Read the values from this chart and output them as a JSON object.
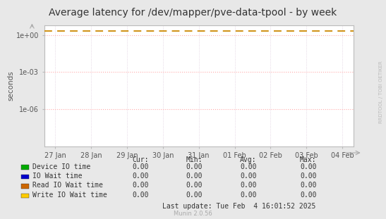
{
  "title": "Average latency for /dev/mapper/pve-data-tpool - by week",
  "ylabel": "seconds",
  "bg_color": "#e8e8e8",
  "plot_bg_color": "#ffffff",
  "grid_color_major": "#ffaaaa",
  "grid_color_minor": "#ddccdd",
  "x_tick_labels": [
    "27 Jan",
    "28 Jan",
    "29 Jan",
    "30 Jan",
    "31 Jan",
    "01 Feb",
    "02 Feb",
    "03 Feb",
    "04 Feb"
  ],
  "x_tick_positions": [
    0,
    1,
    2,
    3,
    4,
    5,
    6,
    7,
    8
  ],
  "ylim_min": 1e-09,
  "ylim_max": 6.0,
  "ytick_positions": [
    1e-06,
    0.001,
    1.0
  ],
  "ytick_labels": [
    "1e-06",
    "1e-03",
    "1e+00"
  ],
  "dashed_line_value": 2.0,
  "dashed_line_color": "#cc8800",
  "watermark_text": "RRDTOOL / TOBI OETIKER",
  "legend_entries": [
    {
      "label": "Device IO time",
      "color": "#00aa00"
    },
    {
      "label": "IO Wait time",
      "color": "#0000cc"
    },
    {
      "label": "Read IO Wait time",
      "color": "#cc6600"
    },
    {
      "label": "Write IO Wait time",
      "color": "#ffcc00"
    }
  ],
  "legend_col_headers": [
    "Cur:",
    "Min:",
    "Avg:",
    "Max:"
  ],
  "legend_values": [
    [
      "0.00",
      "0.00",
      "0.00",
      "0.00"
    ],
    [
      "0.00",
      "0.00",
      "0.00",
      "0.00"
    ],
    [
      "0.00",
      "0.00",
      "0.00",
      "0.00"
    ],
    [
      "0.00",
      "0.00",
      "0.00",
      "0.00"
    ]
  ],
  "last_update_text": "Last update: Tue Feb  4 16:01:52 2025",
  "munin_text": "Munin 2.0.56",
  "title_fontsize": 10,
  "axis_label_fontsize": 7.5,
  "tick_fontsize": 7,
  "legend_fontsize": 7,
  "watermark_fontsize": 5
}
